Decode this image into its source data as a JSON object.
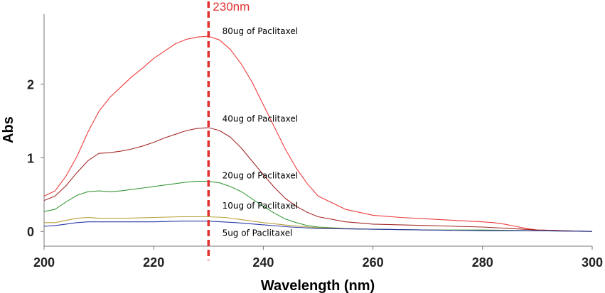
{
  "chart_data": {
    "type": "line",
    "title": "",
    "xlabel": "Wavelength (nm)",
    "ylabel": "Abs",
    "xlim": [
      200,
      300
    ],
    "ylim": [
      -0.2,
      2.95
    ],
    "xticks": [
      200,
      220,
      240,
      260,
      280,
      300
    ],
    "yticks": [
      0,
      1,
      2
    ],
    "grid": false,
    "marker": {
      "x": 230,
      "label": "230nm",
      "color": "#e03030"
    },
    "series": [
      {
        "name": "80ug of Paclitaxel",
        "color": "#ee3b3b",
        "x": [
          200,
          202,
          204,
          206,
          208,
          210,
          212,
          214,
          216,
          218,
          220,
          222,
          224,
          226,
          228,
          230,
          232,
          234,
          236,
          238,
          240,
          242,
          244,
          246,
          248,
          250,
          255,
          260,
          265,
          270,
          275,
          280,
          282,
          284,
          286,
          288,
          290,
          295,
          300
        ],
        "y": [
          0.48,
          0.55,
          0.75,
          1.02,
          1.35,
          1.63,
          1.82,
          1.96,
          2.1,
          2.22,
          2.35,
          2.45,
          2.55,
          2.61,
          2.64,
          2.65,
          2.6,
          2.47,
          2.27,
          2.02,
          1.72,
          1.42,
          1.12,
          0.86,
          0.65,
          0.48,
          0.3,
          0.22,
          0.19,
          0.17,
          0.15,
          0.13,
          0.12,
          0.1,
          0.07,
          0.04,
          0.02,
          0.01,
          0.0
        ]
      },
      {
        "name": "40ug of Paclitaxel",
        "color": "#a52a2a",
        "x": [
          200,
          202,
          204,
          206,
          208,
          210,
          212,
          214,
          216,
          218,
          220,
          222,
          224,
          226,
          228,
          230,
          232,
          234,
          236,
          238,
          240,
          242,
          244,
          246,
          248,
          250,
          255,
          260,
          265,
          270,
          275,
          280,
          285,
          290,
          295,
          300
        ],
        "y": [
          0.42,
          0.48,
          0.62,
          0.8,
          0.96,
          1.06,
          1.07,
          1.09,
          1.12,
          1.16,
          1.21,
          1.27,
          1.32,
          1.37,
          1.4,
          1.41,
          1.37,
          1.28,
          1.13,
          0.95,
          0.77,
          0.6,
          0.45,
          0.34,
          0.26,
          0.2,
          0.13,
          0.1,
          0.09,
          0.08,
          0.07,
          0.06,
          0.04,
          0.02,
          0.01,
          0.0
        ]
      },
      {
        "name": "20ug of Paclitaxel",
        "color": "#3a9a3a",
        "x": [
          200,
          202,
          204,
          206,
          208,
          210,
          212,
          214,
          216,
          218,
          220,
          222,
          224,
          226,
          228,
          230,
          232,
          234,
          236,
          238,
          240,
          242,
          244,
          246,
          248,
          250,
          255,
          260,
          270,
          280,
          290,
          300
        ],
        "y": [
          0.27,
          0.3,
          0.4,
          0.49,
          0.54,
          0.55,
          0.54,
          0.55,
          0.57,
          0.59,
          0.61,
          0.63,
          0.65,
          0.67,
          0.68,
          0.68,
          0.66,
          0.61,
          0.54,
          0.44,
          0.34,
          0.25,
          0.17,
          0.12,
          0.08,
          0.06,
          0.04,
          0.03,
          0.02,
          0.02,
          0.01,
          0.0
        ]
      },
      {
        "name": "10ug of Paclitaxel",
        "color": "#b8a03a",
        "x": [
          200,
          202,
          204,
          206,
          208,
          210,
          215,
          220,
          225,
          230,
          233,
          236,
          240,
          245,
          250,
          260,
          270,
          280,
          290,
          300
        ],
        "y": [
          0.12,
          0.12,
          0.15,
          0.18,
          0.19,
          0.18,
          0.18,
          0.19,
          0.2,
          0.2,
          0.19,
          0.16,
          0.12,
          0.08,
          0.05,
          0.03,
          0.02,
          0.01,
          0.01,
          0.0
        ]
      },
      {
        "name": "5ug of Paclitaxel",
        "color": "#2a3aa8",
        "x": [
          200,
          202,
          204,
          206,
          208,
          210,
          215,
          220,
          225,
          230,
          235,
          240,
          245,
          250,
          260,
          270,
          280,
          290,
          300
        ],
        "y": [
          0.07,
          0.08,
          0.1,
          0.12,
          0.13,
          0.13,
          0.13,
          0.13,
          0.14,
          0.14,
          0.12,
          0.09,
          0.06,
          0.04,
          0.03,
          0.02,
          0.01,
          0.01,
          0.0
        ]
      }
    ],
    "labels": [
      {
        "text": "80ug of Paclitaxel",
        "x": 232.5,
        "y": 2.68
      },
      {
        "text": "40ug of Paclitaxel",
        "x": 232.5,
        "y": 1.49
      },
      {
        "text": "20ug of Paclitaxel",
        "x": 232.5,
        "y": 0.72
      },
      {
        "text": "10ug of Paclitaxel",
        "x": 232.5,
        "y": 0.31
      },
      {
        "text": "5ug of Paclitaxel",
        "x": 232.5,
        "y": -0.06
      }
    ]
  }
}
